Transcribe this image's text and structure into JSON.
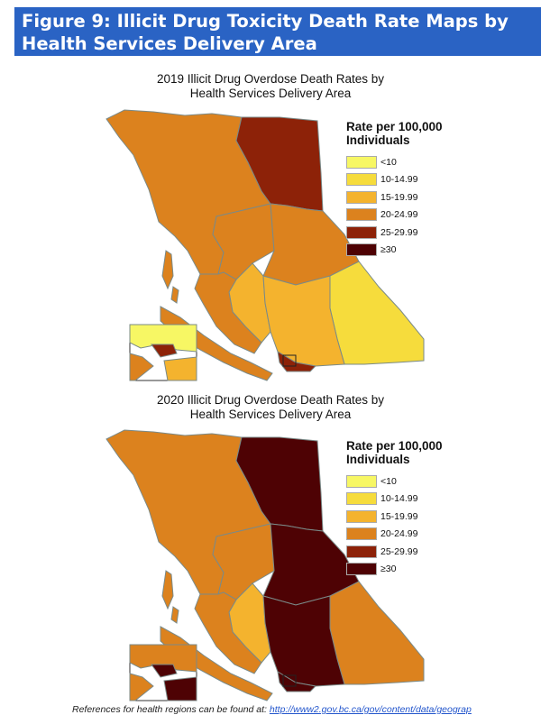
{
  "header": {
    "line1": "Figure 9: Illicit Drug Toxicity Death Rate Maps by",
    "line2": "Health Services Delivery Area"
  },
  "colors": {
    "header_bg": "#2a63c4",
    "border": "#7a8a88",
    "classes": [
      "#f7f764",
      "#f6dc3c",
      "#f4b32e",
      "#dc821e",
      "#8d2208",
      "#4e0204"
    ]
  },
  "legend": {
    "title_line1": "Rate per 100,000",
    "title_line2": "Individuals",
    "labels": [
      "<10",
      "10-14.99",
      "15-19.99",
      "20-24.99",
      "25-29.99",
      "≥30"
    ]
  },
  "maps": [
    {
      "title_line1": "2019 Illicit Drug Overdose Death Rates by",
      "title_line2": "Health Services Delivery Area",
      "region_class": {
        "nw": 3,
        "ne": 4,
        "central_w": 3,
        "central_e": 3,
        "sw_interior": 2,
        "se_kootenay": 1,
        "coast": 3,
        "south": 2,
        "fraser": 4,
        "island": 3
      }
    },
    {
      "title_line1": "2020 Illicit Drug Overdose Death Rates by",
      "title_line2": "Health Services Delivery Area",
      "region_class": {
        "nw": 3,
        "ne": 5,
        "central_w": 3,
        "central_e": 5,
        "sw_interior": 2,
        "se_kootenay": 3,
        "coast": 3,
        "south": 5,
        "fraser": 5,
        "island": 3
      }
    }
  ],
  "footer": {
    "text": "References for health regions can be found at:",
    "link": "http://www2.gov.bc.ca/gov/content/data/geograp"
  }
}
